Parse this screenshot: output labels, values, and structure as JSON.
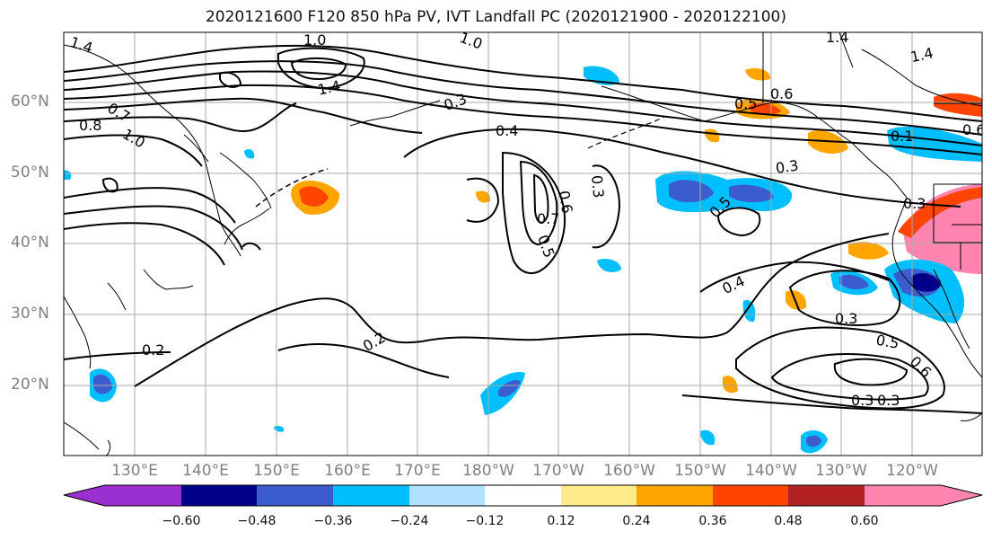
{
  "title": "2020121600 F120 850 hPa PV, IVT Landfall PC (2020121900 - 2020122100)",
  "lat_labels": [
    "60°N",
    "50°N",
    "40°N",
    "30°N",
    "20°N"
  ],
  "lon_labels": [
    "130°E",
    "140°E",
    "150°E",
    "160°E",
    "170°E",
    "180°W",
    "170°W",
    "160°W",
    "150°W",
    "140°W",
    "130°W",
    "120°W"
  ],
  "contour_labels": [
    "1.4",
    "1.0",
    "1.0",
    "1.4",
    "1.4",
    "1.4",
    "0.8",
    "0.7",
    "0.6",
    "1.0",
    "0.3",
    "0.4",
    "0.3",
    "0.5",
    "0.6",
    "0.3",
    "0.1",
    "0.3",
    "0.5",
    "0.7",
    "0.6",
    "0.5",
    "0.4",
    "0.3",
    "0.3",
    "0.5",
    "0.6",
    "0.3",
    "0.2",
    "0.2"
  ],
  "colorbar": {
    "ticks": [
      "−0.60",
      "−0.48",
      "−0.36",
      "−0.24",
      "−0.12",
      "0.12",
      "0.24",
      "0.36",
      "0.48",
      "0.60"
    ],
    "colors": [
      "#9b30d0",
      "#00008b",
      "#3a5ccc",
      "#00bfff",
      "#b0e2ff",
      "#ffffff",
      "#ffeb8a",
      "#ffa500",
      "#ff4500",
      "#b22222",
      "#ff85b0"
    ]
  }
}
